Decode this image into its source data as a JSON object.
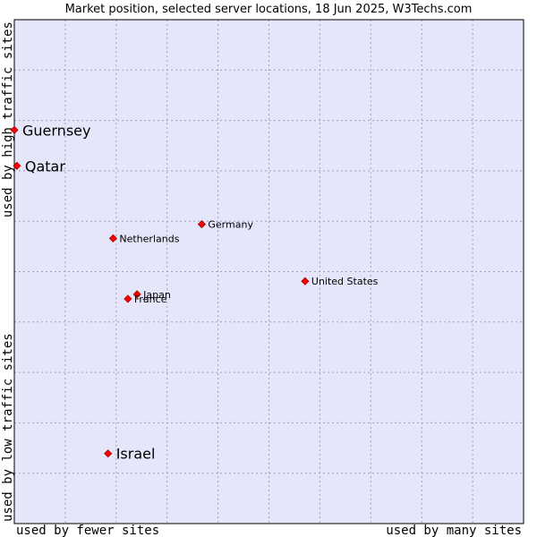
{
  "chart_data": {
    "type": "scatter",
    "title": "Market position, selected server locations, 18 Jun 2025, W3Techs.com",
    "xlabel_left": "used by fewer sites",
    "xlabel_right": "used by many sites",
    "ylabel_top": "used by high traffic sites",
    "ylabel_bottom": "used by low traffic sites",
    "xlim": [
      0,
      100
    ],
    "ylim": [
      0,
      100
    ],
    "grid": true,
    "colors": {
      "plot_bg": "#e6e6fa",
      "grid": "#a0a0b8",
      "point": "#ff0000",
      "point_stroke": "#a00000"
    },
    "points": [
      {
        "name": "Guernsey",
        "x": 0.0,
        "y": 78.1,
        "size": "large"
      },
      {
        "name": "Qatar",
        "x": 0.5,
        "y": 71.0,
        "size": "large"
      },
      {
        "name": "Germany",
        "x": 36.8,
        "y": 59.4,
        "size": "small"
      },
      {
        "name": "Netherlands",
        "x": 19.4,
        "y": 56.6,
        "size": "small"
      },
      {
        "name": "United States",
        "x": 57.1,
        "y": 48.1,
        "size": "small"
      },
      {
        "name": "Japan",
        "x": 24.1,
        "y": 45.5,
        "size": "small"
      },
      {
        "name": "France",
        "x": 22.3,
        "y": 44.6,
        "size": "small"
      },
      {
        "name": "Israel",
        "x": 18.4,
        "y": 13.9,
        "size": "large"
      }
    ]
  }
}
